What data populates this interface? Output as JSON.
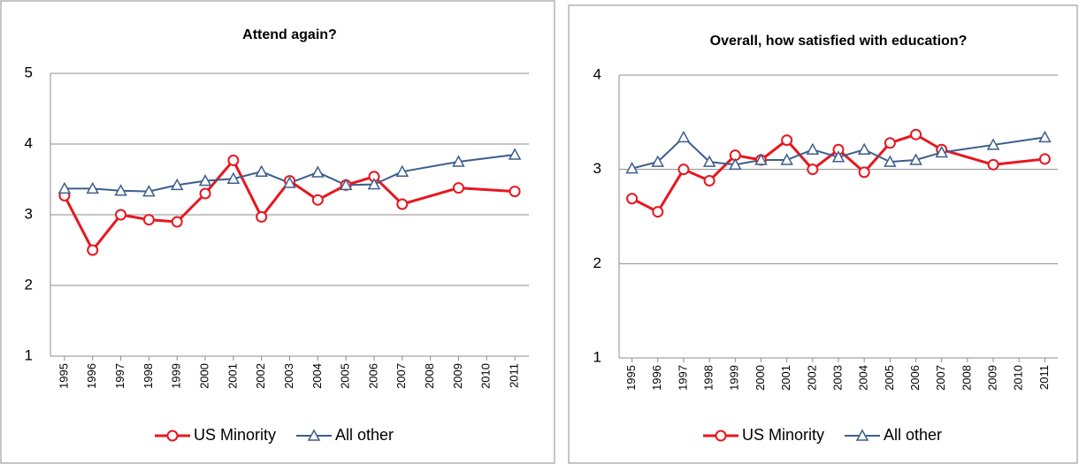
{
  "chart_data": [
    {
      "type": "line",
      "title": "Attend again?",
      "xlim": [
        1994.5,
        2011.5
      ],
      "xticks": [
        1995,
        1996,
        1997,
        1998,
        1999,
        2000,
        2001,
        2002,
        2003,
        2004,
        2005,
        2006,
        2007,
        2008,
        2009,
        2010,
        2011
      ],
      "ylim": [
        1,
        5
      ],
      "yticks": [
        1,
        2,
        3,
        4,
        5
      ],
      "grid": true,
      "legend": "bottom",
      "series": [
        {
          "name": "US Minority",
          "color": "#e8161f",
          "marker": "circle",
          "x": [
            1995,
            1996,
            1997,
            1998,
            1999,
            2000,
            2001,
            2002,
            2003,
            2004,
            2005,
            2006,
            2007,
            2009,
            2011
          ],
          "values": [
            3.27,
            2.5,
            3.0,
            2.93,
            2.9,
            3.3,
            3.77,
            2.97,
            3.48,
            3.21,
            3.42,
            3.54,
            3.15,
            3.38,
            3.33
          ]
        },
        {
          "name": "All other",
          "color": "#3b5e8c",
          "marker": "triangle",
          "x": [
            1995,
            1996,
            1997,
            1998,
            1999,
            2000,
            2001,
            2002,
            2003,
            2004,
            2005,
            2006,
            2007,
            2009,
            2011
          ],
          "values": [
            3.37,
            3.37,
            3.34,
            3.33,
            3.42,
            3.48,
            3.51,
            3.61,
            3.45,
            3.6,
            3.42,
            3.43,
            3.61,
            3.75,
            3.85
          ]
        }
      ]
    },
    {
      "type": "line",
      "title": "Overall, how satisfied with education?",
      "xlim": [
        1994.5,
        2011.5
      ],
      "xticks": [
        1995,
        1996,
        1997,
        1998,
        1999,
        2000,
        2001,
        2002,
        2003,
        2004,
        2005,
        2006,
        2007,
        2008,
        2009,
        2010,
        2011
      ],
      "ylim": [
        1,
        4
      ],
      "yticks": [
        1,
        2,
        3,
        4
      ],
      "grid": true,
      "legend": "bottom",
      "series": [
        {
          "name": "US Minority",
          "color": "#e8161f",
          "marker": "circle",
          "x": [
            1995,
            1996,
            1997,
            1998,
            1999,
            2000,
            2001,
            2002,
            2003,
            2004,
            2005,
            2006,
            2007,
            2009,
            2011
          ],
          "values": [
            2.69,
            2.55,
            3.0,
            2.88,
            3.15,
            3.1,
            3.31,
            3.0,
            3.21,
            2.97,
            3.28,
            3.37,
            3.21,
            3.05,
            3.11
          ]
        },
        {
          "name": "All other",
          "color": "#3b5e8c",
          "marker": "triangle",
          "x": [
            1995,
            1996,
            1997,
            1998,
            1999,
            2000,
            2001,
            2002,
            2003,
            2004,
            2005,
            2006,
            2007,
            2009,
            2011
          ],
          "values": [
            3.01,
            3.08,
            3.34,
            3.08,
            3.05,
            3.1,
            3.1,
            3.21,
            3.13,
            3.21,
            3.08,
            3.1,
            3.18,
            3.26,
            3.34
          ]
        }
      ]
    }
  ]
}
